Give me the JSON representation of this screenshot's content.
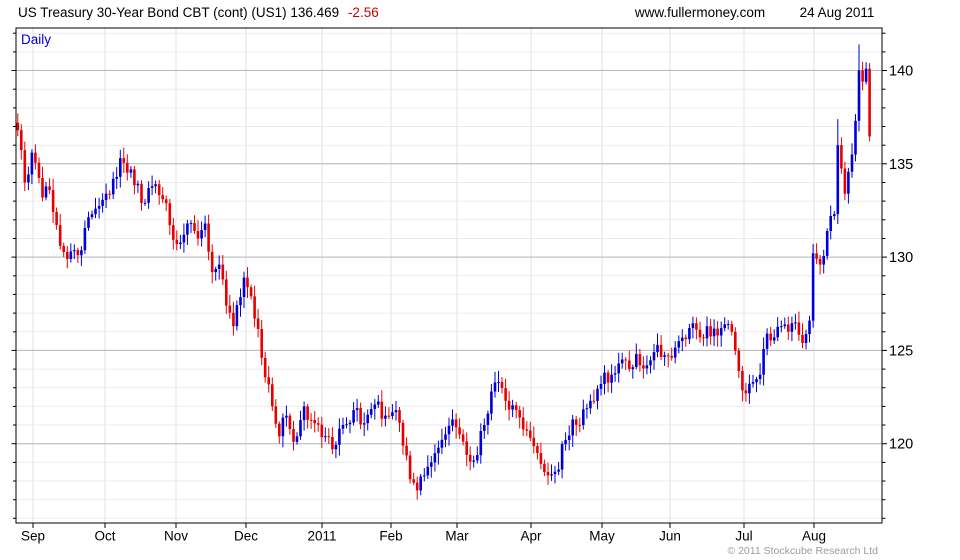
{
  "header": {
    "title": "US Treasury 30-Year  Bond CBT (cont) (US1) 136.469",
    "change": "-2.56",
    "website": "www.fullermoney.com",
    "date": "24 Aug 2011"
  },
  "chart": {
    "period_label": "Daily",
    "copyright": "© 2011 Stockcube Research Ltd"
  },
  "colors": {
    "up_bar": "#0000d6",
    "down_bar": "#e80000",
    "change_text": "#cc0000",
    "period_text": "#0000cc",
    "grid_minor": "#ebebeb",
    "grid_major": "#b8b8b8",
    "grid_vertical": "#e2e2e2",
    "axis": "#000000",
    "copyright_text": "#9c9c9c"
  },
  "chart_data": {
    "type": "candlestick",
    "title": "US Treasury 30-Year Bond CBT (cont) (US1)",
    "frequency": "Daily",
    "last_close": 136.469,
    "change": -2.56,
    "as_of": "24 Aug 2011",
    "y_axis": {
      "side": "right",
      "min": 115.75,
      "max": 142.28,
      "minor_step": 1,
      "major_step": 5,
      "major_labels": [
        "120",
        "125",
        "130",
        "135",
        "140"
      ],
      "major_values": [
        120,
        125,
        130,
        135,
        140
      ]
    },
    "x_axis": {
      "months": [
        {
          "label": "Sep",
          "f": 0.0196
        },
        {
          "label": "Oct",
          "f": 0.1028
        },
        {
          "label": "Nov",
          "f": 0.1848
        },
        {
          "label": "Dec",
          "f": 0.2656
        },
        {
          "label": "2011",
          "f": 0.3533
        },
        {
          "label": "Feb",
          "f": 0.433
        },
        {
          "label": "Mar",
          "f": 0.5092
        },
        {
          "label": "Apr",
          "f": 0.5947
        },
        {
          "label": "May",
          "f": 0.6767
        },
        {
          "label": "Jun",
          "f": 0.7552
        },
        {
          "label": "Jul",
          "f": 0.8406
        },
        {
          "label": "Aug",
          "f": 0.9215
        }
      ]
    },
    "bars_total": 245,
    "first_open": 137.2,
    "noise_amplitude": 0.45,
    "close_path_anchors": [
      [
        0,
        136.8
      ],
      [
        2,
        134.0
      ],
      [
        4,
        135.6
      ],
      [
        7,
        133.2
      ],
      [
        9,
        133.6
      ],
      [
        12,
        130.6
      ],
      [
        14,
        129.9
      ],
      [
        17,
        130.1
      ],
      [
        21,
        132.3
      ],
      [
        25,
        133.4
      ],
      [
        27,
        134.2
      ],
      [
        29,
        135.3
      ],
      [
        32,
        134.7
      ],
      [
        35,
        132.9
      ],
      [
        38,
        133.8
      ],
      [
        41,
        133.1
      ],
      [
        45,
        130.7
      ],
      [
        48,
        131.8
      ],
      [
        51,
        131.0
      ],
      [
        53,
        131.8
      ],
      [
        55,
        129.2
      ],
      [
        57,
        129.6
      ],
      [
        59,
        127.4
      ],
      [
        61,
        126.3
      ],
      [
        64,
        128.9
      ],
      [
        66,
        127.9
      ],
      [
        69,
        124.6
      ],
      [
        72,
        122.0
      ],
      [
        74,
        120.4
      ],
      [
        76,
        121.5
      ],
      [
        78,
        120.1
      ],
      [
        81,
        122.0
      ],
      [
        84,
        121.1
      ],
      [
        87,
        120.4
      ],
      [
        89,
        119.7
      ],
      [
        92,
        121.0
      ],
      [
        95,
        121.8
      ],
      [
        98,
        121.1
      ],
      [
        101,
        122.1
      ],
      [
        104,
        121.5
      ],
      [
        107,
        121.8
      ],
      [
        109,
        119.9
      ],
      [
        111,
        118.1
      ],
      [
        113,
        117.5
      ],
      [
        115,
        118.3
      ],
      [
        117,
        119.0
      ],
      [
        121,
        120.5
      ],
      [
        123,
        121.3
      ],
      [
        125,
        120.5
      ],
      [
        127,
        119.4
      ],
      [
        129,
        119.1
      ],
      [
        132,
        121.0
      ],
      [
        134,
        122.8
      ],
      [
        136,
        123.3
      ],
      [
        138,
        122.3
      ],
      [
        141,
        121.8
      ],
      [
        144,
        120.7
      ],
      [
        147,
        119.5
      ],
      [
        150,
        118.3
      ],
      [
        152,
        118.5
      ],
      [
        155,
        120.2
      ],
      [
        157,
        121.3
      ],
      [
        159,
        121.0
      ],
      [
        162,
        122.3
      ],
      [
        165,
        123.2
      ],
      [
        168,
        123.7
      ],
      [
        170,
        124.3
      ],
      [
        173,
        124.0
      ],
      [
        175,
        124.8
      ],
      [
        178,
        124.2
      ],
      [
        181,
        125.3
      ],
      [
        184,
        124.7
      ],
      [
        187,
        125.5
      ],
      [
        190,
        126.2
      ],
      [
        193,
        125.7
      ],
      [
        195,
        126.3
      ],
      [
        198,
        125.8
      ],
      [
        200,
        126.4
      ],
      [
        202,
        126.0
      ],
      [
        204,
        123.9
      ],
      [
        206,
        122.7
      ],
      [
        208,
        123.3
      ],
      [
        210,
        123.7
      ],
      [
        212,
        125.9
      ],
      [
        214,
        125.7
      ],
      [
        216,
        126.3
      ],
      [
        218,
        126.0
      ],
      [
        220,
        126.5
      ],
      [
        222,
        125.4
      ],
      [
        224,
        126.6
      ],
      [
        225,
        130.2
      ],
      [
        227,
        129.6
      ],
      [
        229,
        131.4
      ],
      [
        231,
        132.3
      ],
      [
        232,
        136.0
      ],
      [
        234,
        133.4
      ],
      [
        236,
        135.5
      ],
      [
        238,
        140.0
      ],
      [
        239,
        139.4
      ],
      [
        240,
        140.1
      ],
      [
        241,
        136.469
      ]
    ],
    "spikes": [
      {
        "day": 14,
        "low": 129.4
      },
      {
        "day": 29,
        "high": 135.75
      },
      {
        "day": 113,
        "low": 117.0
      },
      {
        "day": 136,
        "high": 123.9
      },
      {
        "day": 150,
        "low": 117.8
      },
      {
        "day": 206,
        "low": 122.25
      },
      {
        "day": 232,
        "high": 137.4
      },
      {
        "day": 238,
        "high": 141.4
      },
      {
        "day": 241,
        "high": 140.4,
        "low": 136.2
      }
    ]
  }
}
